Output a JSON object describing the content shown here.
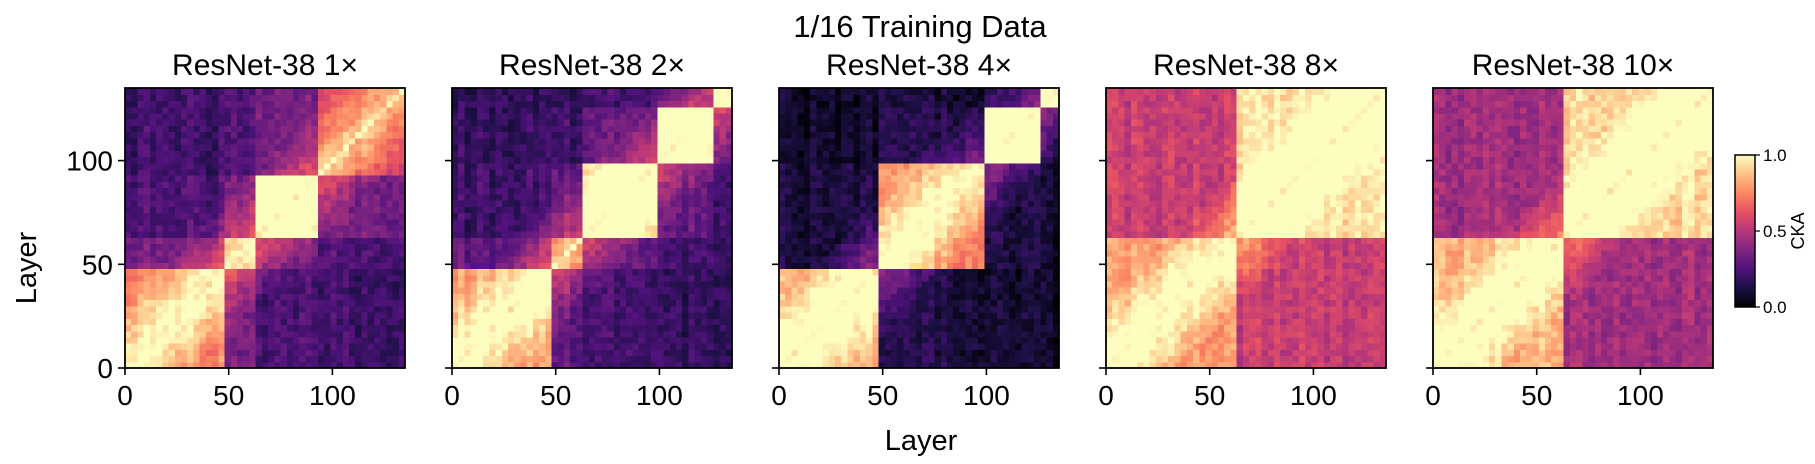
{
  "figure": {
    "suptitle": "1/16 Training Data",
    "xlabel": "Layer",
    "ylabel": "Layer"
  },
  "colorbar": {
    "label": "CKA",
    "min": 0.0,
    "max": 1.0,
    "ticks": [
      "0.0",
      "0.5",
      "1.0"
    ],
    "colormap": "magma",
    "colors": [
      "#000004",
      "#1c1044",
      "#4f127b",
      "#812581",
      "#b5367a",
      "#e55064",
      "#fb8761",
      "#fec287",
      "#fcfdbf"
    ]
  },
  "chart_data": [
    {
      "type": "heatmap",
      "title": "ResNet-38 1×",
      "xlim": [
        0,
        135
      ],
      "ylim": [
        0,
        135
      ],
      "xticks": [
        0,
        50,
        100
      ],
      "yticks": [
        0,
        50,
        100
      ],
      "blocks": [
        {
          "layers": [
            0,
            47
          ],
          "within_cka": 0.75
        },
        {
          "layers": [
            47,
            62
          ],
          "within_cka": 0.7
        },
        {
          "layers": [
            62,
            92
          ],
          "within_cka": 0.95
        },
        {
          "layers": [
            92,
            135
          ],
          "within_cka": 0.6
        }
      ],
      "off_diagonal_cka": 0.35
    },
    {
      "type": "heatmap",
      "title": "ResNet-38 2×",
      "xlim": [
        0,
        135
      ],
      "ylim": [
        0,
        135
      ],
      "xticks": [
        0,
        50,
        100
      ],
      "yticks": [
        0,
        50,
        100
      ],
      "blocks": [
        {
          "layers": [
            0,
            47
          ],
          "within_cka": 0.8
        },
        {
          "layers": [
            47,
            62
          ],
          "within_cka": 0.6
        },
        {
          "layers": [
            62,
            100
          ],
          "within_cka": 0.92
        },
        {
          "layers": [
            100,
            125
          ],
          "within_cka": 0.9
        },
        {
          "layers": [
            125,
            135
          ],
          "within_cka": 0.85
        }
      ],
      "off_diagonal_cka": 0.3
    },
    {
      "type": "heatmap",
      "title": "ResNet-38 4×",
      "xlim": [
        0,
        135
      ],
      "ylim": [
        0,
        135
      ],
      "xticks": [
        0,
        50,
        100
      ],
      "yticks": [
        0,
        50,
        100
      ],
      "blocks": [
        {
          "layers": [
            0,
            47
          ],
          "within_cka": 0.85
        },
        {
          "layers": [
            47,
            100
          ],
          "within_cka": 0.75
        },
        {
          "layers": [
            100,
            125
          ],
          "within_cka": 0.95
        },
        {
          "layers": [
            125,
            135
          ],
          "within_cka": 0.8
        }
      ],
      "off_diagonal_cka": 0.12
    },
    {
      "type": "heatmap",
      "title": "ResNet-38 8×",
      "xlim": [
        0,
        135
      ],
      "ylim": [
        0,
        135
      ],
      "xticks": [
        0,
        50,
        100
      ],
      "yticks": [
        0,
        50,
        100
      ],
      "blocks": [
        {
          "layers": [
            0,
            62
          ],
          "within_cka": 0.8
        },
        {
          "layers": [
            62,
            135
          ],
          "within_cka": 0.95
        }
      ],
      "off_diagonal_cka": 0.55
    },
    {
      "type": "heatmap",
      "title": "ResNet-38 10×",
      "xlim": [
        0,
        135
      ],
      "ylim": [
        0,
        135
      ],
      "xticks": [
        0,
        50,
        100
      ],
      "yticks": [
        0,
        50,
        100
      ],
      "blocks": [
        {
          "layers": [
            0,
            62
          ],
          "within_cka": 0.85
        },
        {
          "layers": [
            62,
            135
          ],
          "within_cka": 0.92
        }
      ],
      "off_diagonal_cka": 0.45
    }
  ]
}
